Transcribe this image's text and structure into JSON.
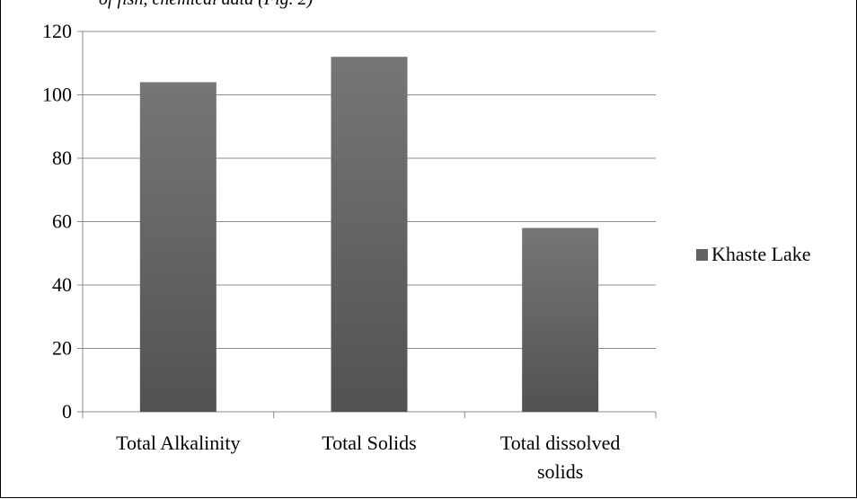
{
  "page": {
    "clipped_heading": "of fish, chemical data (Fig. 2)"
  },
  "chart_data": {
    "type": "bar",
    "categories": [
      [
        "Total Alkalinity"
      ],
      [
        "Total Solids"
      ],
      [
        "Total dissolved",
        "solids"
      ]
    ],
    "series": [
      {
        "name": "Khaste Lake",
        "values": [
          104,
          112,
          58
        ],
        "color": "#626262"
      }
    ],
    "yticks": [
      "0",
      "20",
      "40",
      "60",
      "80",
      "100",
      "120"
    ],
    "ylim": [
      0,
      120
    ],
    "grid": true,
    "legend_position": "right"
  }
}
